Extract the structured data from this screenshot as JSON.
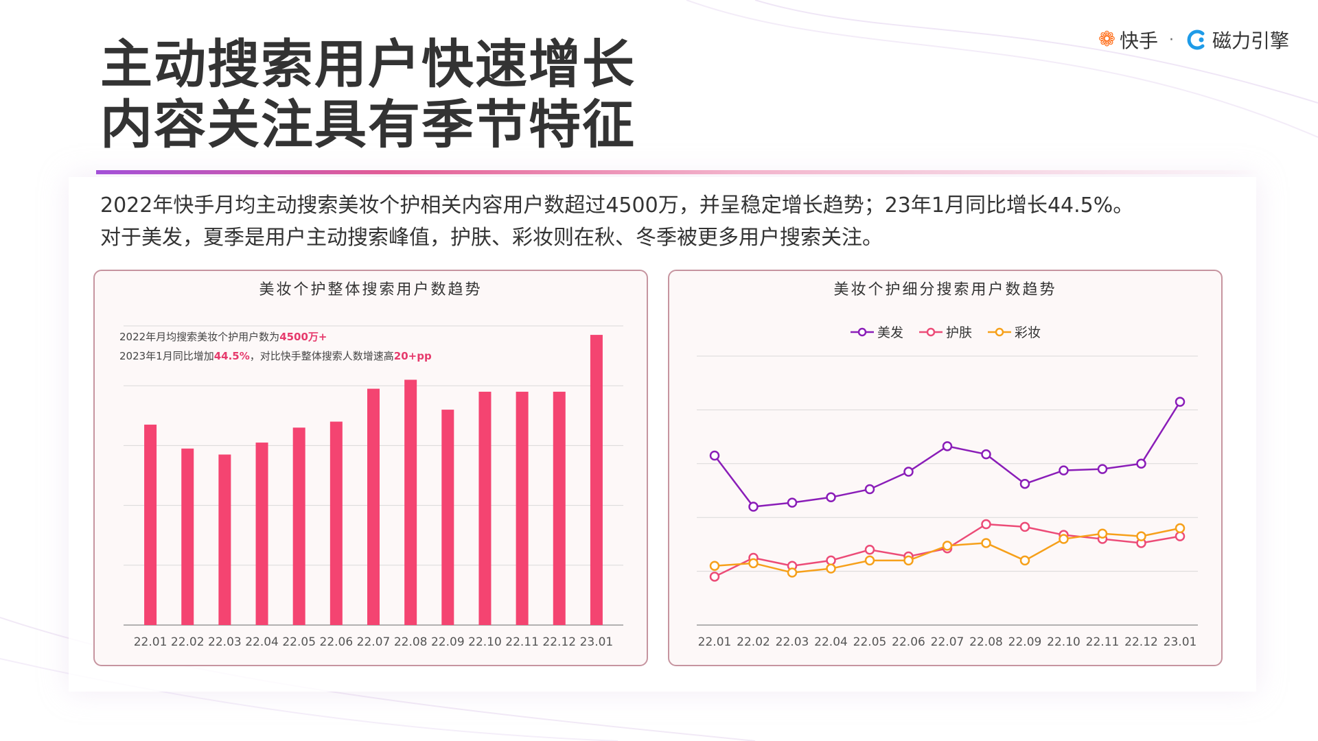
{
  "logo": {
    "kuaishou": "快手",
    "separator": "·",
    "cili": "磁力引擎"
  },
  "title": {
    "line1": "主动搜索用户快速增长",
    "line2": "内容关注具有季节特征"
  },
  "description": {
    "line1": "2022年快手月均主动搜索美妆个护相关内容用户数超过4500万，并呈稳定增长趋势；23年1月同比增长44.5%。",
    "line2": "对于美发，夏季是用户主动搜索峰值，护肤、彩妆则在秋、冬季被更多用户搜索关注。"
  },
  "colors": {
    "bar": "#f44471",
    "hair": "#8a1db8",
    "skin": "#ec4b77",
    "makeup": "#f6a01a",
    "grid": "#d9d9d9",
    "highlight": "#e63a6c"
  },
  "annotations": {
    "a1_prefix": "2022年月均搜索美妆个护用户数为",
    "a1_highlight": "4500万+",
    "a2_prefix": "2023年1月同比增加",
    "a2_highlight": "44.5%",
    "a2_middle": "，对比快手整体搜索人数增速高",
    "a2_highlight2": "20+pp"
  },
  "chart_data": [
    {
      "type": "bar",
      "title": "美妆个护整体搜索用户数趋势",
      "categories": [
        "22.01",
        "22.02",
        "22.03",
        "22.04",
        "22.05",
        "22.06",
        "22.07",
        "22.08",
        "22.09",
        "22.10",
        "22.11",
        "22.12",
        "23.01"
      ],
      "values": [
        67,
        59,
        57,
        61,
        66,
        68,
        79,
        82,
        72,
        78,
        78,
        78,
        97
      ],
      "ylim": [
        0,
        100
      ],
      "grid": true,
      "xlabel": "",
      "ylabel": ""
    },
    {
      "type": "line",
      "title": "美妆个护细分搜索用户数趋势",
      "categories": [
        "22.01",
        "22.02",
        "22.03",
        "22.04",
        "22.05",
        "22.06",
        "22.07",
        "22.08",
        "22.09",
        "22.10",
        "22.11",
        "22.12",
        "23.01"
      ],
      "series": [
        {
          "name": "美发",
          "values": [
            63,
            44,
            45.5,
            47.5,
            50.5,
            57,
            66.5,
            63.5,
            52.5,
            57.5,
            58,
            60,
            83
          ]
        },
        {
          "name": "护肤",
          "values": [
            18,
            25,
            22,
            24,
            28,
            25.5,
            28.5,
            37.5,
            36.5,
            33.5,
            32,
            30.5,
            33
          ]
        },
        {
          "name": "彩妆",
          "values": [
            22,
            23,
            19.5,
            21,
            24,
            24,
            29.5,
            30.5,
            24,
            32,
            34,
            33,
            36
          ]
        }
      ],
      "ylim": [
        0,
        100
      ],
      "grid": true,
      "legend": "top-center",
      "xlabel": "",
      "ylabel": ""
    }
  ]
}
